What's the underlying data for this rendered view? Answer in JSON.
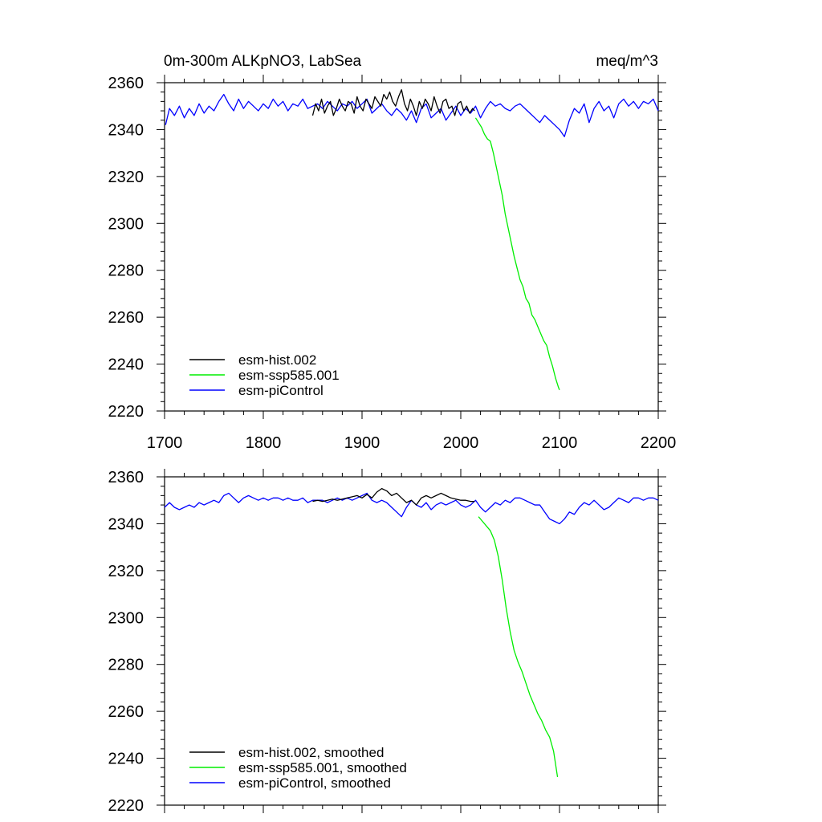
{
  "figure": {
    "title_left": "0m-300m ALKpNO3, LabSea",
    "title_right": "meq/m^3"
  },
  "chart_data": [
    {
      "type": "line",
      "panel": "top",
      "title": "0m-300m ALKpNO3, LabSea",
      "units": "meq/m^3",
      "xlabel": "",
      "ylabel": "",
      "xlim": [
        1700,
        2200
      ],
      "ylim": [
        2220,
        2360
      ],
      "x_ticks": [
        1700,
        1800,
        1900,
        2000,
        2100,
        2200
      ],
      "y_ticks": [
        2220,
        2240,
        2260,
        2280,
        2300,
        2320,
        2340,
        2360
      ],
      "legend_position": "bottom-left",
      "grid": false,
      "series": [
        {
          "name": "esm-hist.002",
          "color": "#000000",
          "x": [
            1850,
            1853,
            1856,
            1859,
            1862,
            1865,
            1868,
            1871,
            1874,
            1877,
            1880,
            1883,
            1886,
            1889,
            1892,
            1895,
            1898,
            1901,
            1904,
            1907,
            1910,
            1913,
            1916,
            1919,
            1922,
            1925,
            1928,
            1931,
            1934,
            1937,
            1940,
            1943,
            1946,
            1949,
            1952,
            1955,
            1958,
            1961,
            1964,
            1967,
            1970,
            1973,
            1976,
            1979,
            1982,
            1985,
            1988,
            1991,
            1994,
            1997,
            2000,
            2003,
            2006,
            2009,
            2012,
            2014
          ],
          "y": [
            2346,
            2351,
            2348,
            2353,
            2347,
            2350,
            2352,
            2346,
            2349,
            2353,
            2350,
            2348,
            2352,
            2351,
            2347,
            2354,
            2350,
            2348,
            2353,
            2351,
            2349,
            2354,
            2352,
            2350,
            2355,
            2353,
            2356,
            2352,
            2350,
            2354,
            2357,
            2351,
            2348,
            2353,
            2350,
            2346,
            2352,
            2349,
            2353,
            2351,
            2348,
            2354,
            2350,
            2347,
            2352,
            2353,
            2349,
            2350,
            2346,
            2351,
            2352,
            2348,
            2350,
            2347,
            2349,
            2348
          ]
        },
        {
          "name": "esm-ssp585.001",
          "color": "#00ee00",
          "x": [
            2015,
            2018,
            2021,
            2024,
            2027,
            2030,
            2033,
            2036,
            2039,
            2042,
            2045,
            2048,
            2051,
            2054,
            2057,
            2060,
            2063,
            2066,
            2069,
            2072,
            2075,
            2078,
            2081,
            2084,
            2087,
            2090,
            2093,
            2096,
            2099,
            2100
          ],
          "y": [
            2345,
            2343,
            2341,
            2338,
            2336,
            2335,
            2330,
            2324,
            2318,
            2312,
            2304,
            2298,
            2292,
            2286,
            2281,
            2276,
            2273,
            2268,
            2266,
            2261,
            2259,
            2256,
            2253,
            2250,
            2248,
            2243,
            2239,
            2234,
            2230,
            2229
          ]
        },
        {
          "name": "esm-piControl",
          "color": "#0000ff",
          "x": [
            1701,
            1705,
            1710,
            1715,
            1720,
            1725,
            1730,
            1735,
            1740,
            1745,
            1750,
            1755,
            1760,
            1765,
            1770,
            1775,
            1780,
            1785,
            1790,
            1795,
            1800,
            1805,
            1810,
            1815,
            1820,
            1825,
            1830,
            1835,
            1840,
            1845,
            1850,
            1855,
            1860,
            1865,
            1870,
            1875,
            1880,
            1885,
            1890,
            1895,
            1900,
            1905,
            1910,
            1915,
            1920,
            1925,
            1930,
            1935,
            1940,
            1945,
            1950,
            1955,
            1960,
            1965,
            1970,
            1975,
            1980,
            1985,
            1990,
            1995,
            2000,
            2005,
            2010,
            2015,
            2020,
            2025,
            2030,
            2035,
            2040,
            2045,
            2050,
            2055,
            2060,
            2065,
            2070,
            2075,
            2080,
            2085,
            2090,
            2095,
            2100,
            2105,
            2110,
            2115,
            2120,
            2125,
            2130,
            2135,
            2140,
            2145,
            2150,
            2155,
            2160,
            2165,
            2170,
            2175,
            2180,
            2185,
            2190,
            2195,
            2200
          ],
          "y": [
            2342,
            2349,
            2346,
            2350,
            2345,
            2349,
            2346,
            2351,
            2347,
            2350,
            2348,
            2352,
            2355,
            2351,
            2348,
            2353,
            2349,
            2352,
            2350,
            2348,
            2351,
            2349,
            2353,
            2350,
            2352,
            2348,
            2351,
            2350,
            2353,
            2349,
            2350,
            2351,
            2349,
            2352,
            2350,
            2348,
            2351,
            2350,
            2352,
            2349,
            2351,
            2353,
            2347,
            2349,
            2351,
            2348,
            2346,
            2349,
            2347,
            2344,
            2348,
            2343,
            2349,
            2351,
            2345,
            2347,
            2349,
            2344,
            2347,
            2350,
            2346,
            2349,
            2347,
            2350,
            2345,
            2349,
            2352,
            2350,
            2351,
            2349,
            2348,
            2350,
            2351,
            2349,
            2347,
            2345,
            2343,
            2346,
            2344,
            2342,
            2340,
            2337,
            2344,
            2349,
            2347,
            2351,
            2343,
            2349,
            2352,
            2348,
            2350,
            2345,
            2351,
            2353,
            2350,
            2352,
            2349,
            2352,
            2351,
            2353,
            2348
          ]
        }
      ]
    },
    {
      "type": "line",
      "panel": "bottom",
      "xlabel": "",
      "ylabel": "",
      "xlim": [
        1700,
        2200
      ],
      "ylim": [
        2220,
        2360
      ],
      "y_ticks": [
        2220,
        2240,
        2260,
        2280,
        2300,
        2320,
        2340,
        2360
      ],
      "legend_position": "bottom-left",
      "grid": false,
      "series": [
        {
          "name": "esm-hist.002, smoothed",
          "color": "#000000",
          "x": [
            1850,
            1855,
            1860,
            1865,
            1870,
            1875,
            1880,
            1885,
            1890,
            1895,
            1900,
            1905,
            1910,
            1915,
            1920,
            1925,
            1930,
            1935,
            1940,
            1945,
            1950,
            1955,
            1960,
            1965,
            1970,
            1975,
            1980,
            1985,
            1990,
            1995,
            2000,
            2005,
            2010,
            2014
          ],
          "y": [
            2349.5,
            2350,
            2349.5,
            2350,
            2350.5,
            2350,
            2350.5,
            2351,
            2351.5,
            2352,
            2351,
            2352.5,
            2351,
            2353.5,
            2355,
            2354,
            2352,
            2353,
            2351,
            2349,
            2350,
            2348,
            2351,
            2352,
            2351,
            2352,
            2353,
            2352,
            2351,
            2350.5,
            2350,
            2350,
            2349.5,
            2349.5
          ]
        },
        {
          "name": "esm-ssp585.001, smoothed",
          "color": "#00ee00",
          "x": [
            2018,
            2022,
            2026,
            2030,
            2034,
            2038,
            2042,
            2046,
            2050,
            2054,
            2058,
            2062,
            2066,
            2070,
            2074,
            2078,
            2082,
            2086,
            2090,
            2094,
            2098
          ],
          "y": [
            2343,
            2341,
            2339,
            2337,
            2333,
            2326,
            2316,
            2304,
            2294,
            2286,
            2281,
            2277,
            2272,
            2267,
            2263,
            2259,
            2256,
            2252,
            2249,
            2243,
            2232
          ]
        },
        {
          "name": "esm-piControl, smoothed",
          "color": "#0000ff",
          "x": [
            1700,
            1705,
            1710,
            1715,
            1720,
            1725,
            1730,
            1735,
            1740,
            1745,
            1750,
            1755,
            1760,
            1765,
            1770,
            1775,
            1780,
            1785,
            1790,
            1795,
            1800,
            1805,
            1810,
            1815,
            1820,
            1825,
            1830,
            1835,
            1840,
            1845,
            1850,
            1855,
            1860,
            1865,
            1870,
            1875,
            1880,
            1885,
            1890,
            1895,
            1900,
            1905,
            1910,
            1915,
            1920,
            1925,
            1930,
            1935,
            1940,
            1945,
            1950,
            1955,
            1960,
            1965,
            1970,
            1975,
            1980,
            1985,
            1990,
            1995,
            2000,
            2005,
            2010,
            2015,
            2020,
            2025,
            2030,
            2035,
            2040,
            2045,
            2050,
            2055,
            2060,
            2065,
            2070,
            2075,
            2080,
            2085,
            2090,
            2095,
            2100,
            2105,
            2110,
            2115,
            2120,
            2125,
            2130,
            2135,
            2140,
            2145,
            2150,
            2155,
            2160,
            2165,
            2170,
            2175,
            2180,
            2185,
            2190,
            2195,
            2200
          ],
          "y": [
            2347,
            2349,
            2347,
            2346,
            2347,
            2348,
            2347,
            2349,
            2348,
            2349,
            2350,
            2349,
            2352,
            2353,
            2351,
            2349,
            2351,
            2352,
            2351,
            2350,
            2351,
            2350,
            2351,
            2351,
            2350,
            2351,
            2350,
            2350,
            2351,
            2349,
            2350,
            2350,
            2350,
            2349,
            2350,
            2351,
            2350,
            2351,
            2350,
            2351,
            2352,
            2353,
            2350,
            2349,
            2350,
            2349,
            2347,
            2345,
            2343,
            2347,
            2350,
            2348,
            2347,
            2349,
            2346,
            2348,
            2349,
            2348,
            2349,
            2350,
            2348,
            2347,
            2348,
            2350,
            2347,
            2345,
            2347,
            2349,
            2348,
            2350,
            2349,
            2351,
            2351,
            2350,
            2349,
            2348,
            2348,
            2345,
            2342,
            2341,
            2340,
            2342,
            2345,
            2344,
            2347,
            2349,
            2348,
            2350,
            2348,
            2346,
            2347,
            2349,
            2351,
            2350,
            2349,
            2351,
            2351,
            2350,
            2351,
            2351,
            2350
          ]
        }
      ]
    }
  ]
}
